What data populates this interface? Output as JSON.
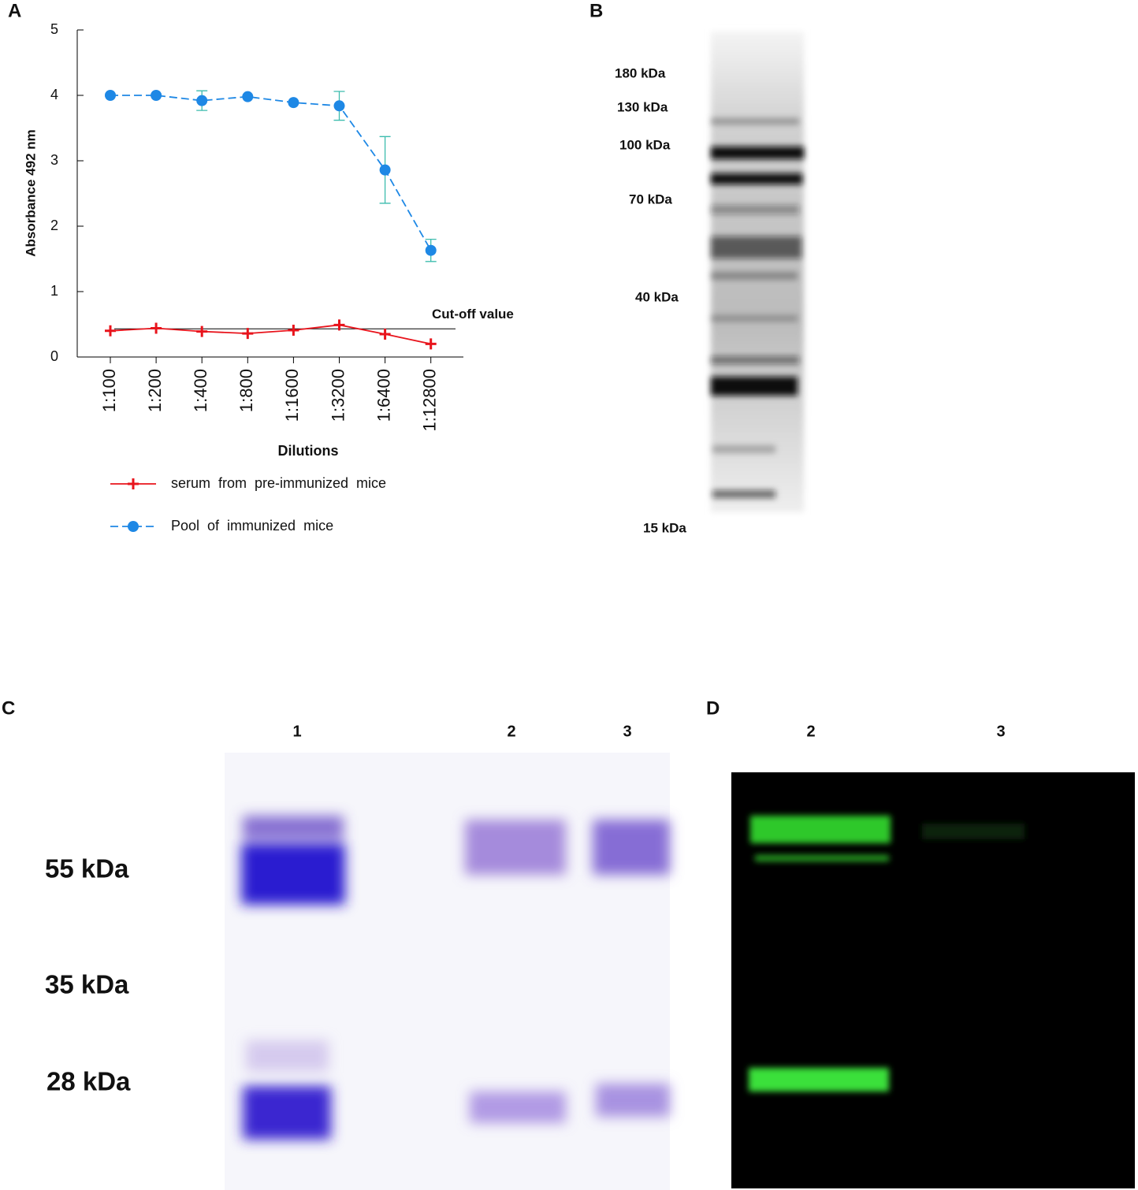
{
  "panel_labels": [
    "A",
    "B",
    "C",
    "D"
  ],
  "chart_data": {
    "type": "line",
    "x_label": "Dilutions",
    "y_label": "Absorbance 492 nm",
    "categories": [
      "1:100",
      "1:200",
      "1:400",
      "1:800",
      "1:1600",
      "1:3200",
      "1:6400",
      "1:12800"
    ],
    "series": [
      {
        "name": "serum  from  pre-immunized  mice",
        "color": "#e8141c",
        "line_style": "solid",
        "marker": "plus",
        "values": [
          0.4,
          0.44,
          0.39,
          0.36,
          0.41,
          0.49,
          0.35,
          0.2
        ]
      },
      {
        "name": "Pool  of  immunized  mice",
        "color": "#1e88e5",
        "line_style": "dashed",
        "marker": "circle",
        "values": [
          4.0,
          4.0,
          3.92,
          3.98,
          3.89,
          3.84,
          2.86,
          1.63
        ],
        "errors": [
          0,
          0,
          0.15,
          0,
          0,
          0.22,
          0.51,
          0.17
        ],
        "error_color": "#3cbcae"
      }
    ],
    "cutoff": {
      "value": 0.43,
      "label": "Cut-off value"
    },
    "ylim": [
      0,
      5
    ],
    "yticks": [
      0,
      1,
      2,
      3,
      4,
      5
    ]
  },
  "blot_b": {
    "markers": [
      "180 kDa",
      "130 kDa",
      "100 kDa",
      "70 kDa",
      "40 kDa",
      "15 kDa"
    ]
  },
  "gel_c": {
    "lanes": [
      "1",
      "2",
      "3"
    ],
    "markers": [
      "55 kDa",
      "35 kDa",
      "28 kDa"
    ]
  },
  "blot_d": {
    "lanes": [
      "2",
      "3"
    ]
  }
}
